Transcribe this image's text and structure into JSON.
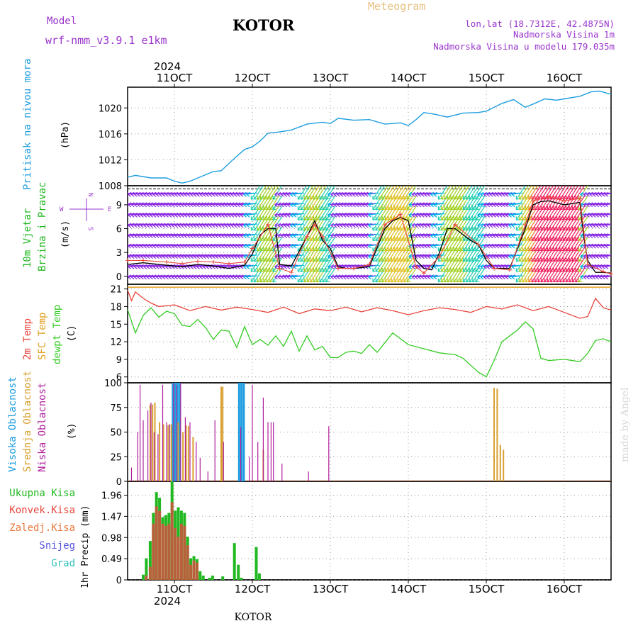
{
  "header": {
    "model_label": "Model",
    "model_name": "wrf-nmm_v3.9.1 e1km",
    "location": "KOTOR",
    "meteogram": "Meteogram",
    "lonlat": "lon,lat (18.7312E, 42.4875N)",
    "elevation": "Nadmorska Visina 1m",
    "model_elevation": "Nadmorska Visina u modelu 179.035m",
    "year": "2024",
    "footer_location": "KOTOR",
    "watermark": "made by Angel"
  },
  "colors": {
    "pressure": "#1e9ee0",
    "wind_title": "#22b822",
    "wind_label": "#9933cc",
    "temp2m": "#e8453c",
    "sfc": "#e0a020",
    "dew": "#33cc22",
    "cloud_high": "#1e9ee0",
    "cloud_mid": "#d9a030",
    "cloud_low": "#b0209c",
    "precip_total": "#22b822",
    "precip_conv": "#e8453c",
    "precip_frz": "#e8783c",
    "precip_snow": "#5555dd",
    "precip_hail": "#33c0c0"
  },
  "chart_data": [
    {
      "type": "line",
      "ylabel": "(hPa)",
      "side_labels": [
        "Pritisak na nivou mora"
      ],
      "x_ticks": [
        "11OCT",
        "12OCT",
        "13OCT",
        "14OCT",
        "15OCT",
        "16OCT"
      ],
      "x_tick_days": [
        11,
        12,
        13,
        14,
        15,
        16
      ],
      "xlim": [
        10.4,
        16.6
      ],
      "ylim": [
        1008,
        1023.2
      ],
      "y_ticks": [
        1008,
        1012,
        1016,
        1020
      ],
      "grid": true,
      "series": [
        {
          "x": [
            10.4,
            10.5,
            10.7,
            10.9,
            11.0,
            11.1,
            11.2,
            11.4,
            11.5,
            11.6,
            11.75,
            11.9,
            12.0,
            12.1,
            12.2,
            12.35,
            12.5,
            12.7,
            12.9,
            13.0,
            13.1,
            13.3,
            13.5,
            13.7,
            13.9,
            14.0,
            14.1,
            14.2,
            14.35,
            14.5,
            14.7,
            14.9,
            15.0,
            15.2,
            15.35,
            15.5,
            15.6,
            15.75,
            15.9,
            16.0,
            16.2,
            16.35,
            16.45,
            16.6
          ],
          "y": [
            1009.3,
            1009.6,
            1009.2,
            1009.2,
            1008.7,
            1008.4,
            1008.7,
            1009.7,
            1010.2,
            1010.3,
            1012.0,
            1013.6,
            1014.0,
            1014.9,
            1016.1,
            1016.3,
            1016.6,
            1017.5,
            1017.8,
            1017.6,
            1018.4,
            1018.1,
            1018.2,
            1017.5,
            1017.7,
            1017.3,
            1018.2,
            1019.3,
            1019.0,
            1018.6,
            1019.2,
            1019.3,
            1019.5,
            1020.7,
            1021.3,
            1020.1,
            1020.6,
            1021.4,
            1021.2,
            1021.4,
            1021.8,
            1022.5,
            1022.6,
            1022.1
          ]
        }
      ]
    },
    {
      "type": "line",
      "ylabel": "(m/s)",
      "side_labels": [
        "10m Vjetar",
        "Brzina i Pravac"
      ],
      "compass": {
        "n": "N",
        "w": "W",
        "e": "E",
        "s": "S"
      },
      "xlim": [
        10.4,
        16.6
      ],
      "ylim": [
        -1,
        11.4
      ],
      "y_ticks": [
        0,
        3,
        6,
        9
      ],
      "grid": true,
      "series": [
        {
          "name": "speed",
          "x": [
            10.4,
            10.6,
            10.9,
            11.1,
            11.3,
            11.5,
            11.7,
            11.9,
            12.0,
            12.1,
            12.2,
            12.3,
            12.35,
            12.5,
            12.7,
            12.8,
            12.9,
            13.0,
            13.1,
            13.2,
            13.3,
            13.5,
            13.7,
            13.8,
            13.9,
            14.0,
            14.1,
            14.2,
            14.3,
            14.4,
            14.5,
            14.6,
            14.8,
            14.9,
            15.0,
            15.1,
            15.2,
            15.3,
            15.5,
            15.6,
            15.7,
            15.8,
            16.0,
            16.2,
            16.25,
            16.3,
            16.4,
            16.5,
            16.6
          ],
          "y": [
            1.5,
            1.7,
            1.4,
            1.2,
            1.5,
            1.3,
            1.0,
            1.4,
            2.8,
            5.2,
            6.0,
            6.0,
            1.5,
            1.3,
            5.0,
            7.0,
            4.5,
            3.5,
            1.2,
            1.0,
            1.0,
            1.2,
            6.0,
            7.0,
            7.4,
            7.0,
            2.0,
            1.0,
            0.8,
            3.0,
            6.0,
            6.0,
            4.5,
            4.0,
            2.0,
            1.0,
            1.0,
            1.0,
            6.0,
            9.0,
            9.4,
            9.5,
            9.0,
            9.3,
            5.0,
            2.0,
            0.5,
            0.5,
            0.4
          ]
        },
        {
          "name": "gust",
          "x": [
            10.4,
            10.6,
            10.9,
            11.1,
            11.3,
            11.5,
            11.7,
            11.9,
            12.0,
            12.2,
            12.35,
            12.5,
            12.7,
            12.8,
            12.9,
            13.1,
            13.3,
            13.5,
            13.7,
            13.9,
            14.1,
            14.2,
            14.4,
            14.6,
            14.9,
            15.1,
            15.3,
            15.5,
            15.6,
            15.8,
            16.0,
            16.2,
            16.3,
            16.5,
            16.6
          ],
          "y": [
            2.0,
            2.0,
            1.8,
            1.6,
            1.9,
            1.8,
            1.6,
            1.8,
            3.5,
            6.5,
            1.0,
            0.5,
            5.0,
            6.5,
            5.0,
            1.0,
            1.0,
            1.5,
            6.5,
            7.8,
            1.2,
            0.4,
            2.5,
            6.5,
            4.0,
            1.0,
            0.8,
            6.5,
            9.5,
            10.0,
            9.5,
            9.8,
            1.5,
            0.6,
            0.3
          ]
        }
      ]
    },
    {
      "type": "line",
      "ylabel": "(C)",
      "side_labels": [
        "2m Temp",
        "SFC Temp",
        "dewpt Temp"
      ],
      "xlim": [
        10.4,
        16.6
      ],
      "ylim": [
        5,
        21.8
      ],
      "y_ticks": [
        6,
        9,
        12,
        15,
        18,
        21
      ],
      "grid": true,
      "series": [
        {
          "name": "2m",
          "x": [
            10.4,
            10.45,
            10.5,
            10.6,
            10.7,
            10.8,
            11.0,
            11.2,
            11.4,
            11.6,
            11.8,
            12.0,
            12.2,
            12.4,
            12.6,
            12.8,
            13.0,
            13.2,
            13.4,
            13.6,
            13.8,
            14.0,
            14.2,
            14.4,
            14.6,
            14.8,
            15.0,
            15.2,
            15.4,
            15.6,
            15.8,
            16.0,
            16.2,
            16.3,
            16.4,
            16.5,
            16.6
          ],
          "y": [
            20.8,
            19.0,
            20.5,
            19.4,
            18.6,
            18.0,
            18.3,
            17.3,
            18.0,
            17.4,
            17.9,
            17.5,
            17.0,
            17.9,
            16.8,
            17.6,
            17.3,
            17.9,
            17.1,
            17.8,
            17.3,
            16.6,
            17.3,
            17.8,
            17.5,
            17.0,
            18.0,
            17.6,
            18.3,
            17.3,
            18.0,
            17.0,
            16.0,
            16.3,
            19.4,
            17.8,
            17.4
          ]
        },
        {
          "name": "sfc",
          "x": [
            10.4,
            16.6
          ],
          "y": [
            21.3,
            21.3
          ]
        },
        {
          "name": "dewpt",
          "x": [
            10.4,
            10.5,
            10.6,
            10.7,
            10.8,
            10.9,
            11.0,
            11.1,
            11.2,
            11.3,
            11.4,
            11.5,
            11.6,
            11.7,
            11.8,
            11.9,
            12.0,
            12.1,
            12.2,
            12.3,
            12.4,
            12.5,
            12.6,
            12.7,
            12.8,
            12.9,
            13.0,
            13.1,
            13.2,
            13.3,
            13.4,
            13.5,
            13.6,
            13.8,
            14.0,
            14.2,
            14.4,
            14.6,
            14.7,
            14.8,
            14.9,
            15.0,
            15.1,
            15.2,
            15.3,
            15.4,
            15.5,
            15.6,
            15.7,
            15.8,
            16.0,
            16.2,
            16.3,
            16.4,
            16.5,
            16.6
          ],
          "y": [
            17.5,
            13.5,
            16.5,
            17.8,
            16.2,
            17.2,
            16.8,
            14.8,
            14.6,
            15.8,
            14.4,
            12.4,
            14.0,
            13.8,
            11.0,
            14.6,
            11.5,
            12.4,
            11.4,
            13.0,
            11.2,
            13.8,
            10.4,
            13.0,
            10.6,
            11.2,
            9.3,
            9.3,
            10.2,
            10.4,
            10.0,
            11.5,
            10.2,
            13.5,
            11.5,
            10.8,
            10.1,
            9.8,
            9.2,
            8.0,
            6.8,
            6.0,
            8.8,
            12.0,
            13.0,
            14.0,
            15.4,
            14.2,
            9.2,
            8.8,
            9.0,
            8.6,
            10.0,
            12.2,
            12.5,
            12.0
          ]
        }
      ]
    },
    {
      "type": "bar",
      "ylabel": "(%)",
      "side_labels": [
        "Visoka Oblacnost",
        "Srednja Oblacnost",
        "Niska Oblacnost"
      ],
      "xlim": [
        10.4,
        16.6
      ],
      "ylim": [
        0,
        100
      ],
      "y_ticks": [
        0,
        25,
        50,
        75,
        100
      ],
      "grid": true,
      "series": [
        {
          "name": "high",
          "x": [
            10.98,
            11.01,
            11.04,
            11.07,
            11.83,
            11.86,
            11.89
          ],
          "values": [
            100,
            100,
            100,
            100,
            100,
            100,
            100
          ]
        },
        {
          "name": "mid",
          "x": [
            10.69,
            10.72,
            10.75,
            10.81,
            10.86,
            10.92,
            10.96,
            11.05,
            11.11,
            11.15,
            11.18,
            11.24,
            11.6,
            11.62,
            12.14,
            15.1,
            15.14,
            15.18,
            15.22
          ],
          "values": [
            78,
            78,
            80,
            60,
            58,
            57,
            58,
            60,
            50,
            57,
            56,
            45,
            96,
            96,
            32,
            95,
            94,
            37,
            32
          ]
        },
        {
          "name": "low",
          "x": [
            10.45,
            10.53,
            10.56,
            10.6,
            10.66,
            10.7,
            10.74,
            10.79,
            10.85,
            10.9,
            10.94,
            10.99,
            11.03,
            11.08,
            11.14,
            11.2,
            11.28,
            11.33,
            11.43,
            11.52,
            11.63,
            11.85,
            11.96,
            12.0,
            12.07,
            12.14,
            12.2,
            12.24,
            12.27,
            12.38,
            12.72,
            12.98
          ],
          "values": [
            14,
            50,
            98,
            62,
            72,
            80,
            50,
            48,
            98,
            60,
            58,
            100,
            98,
            100,
            65,
            60,
            40,
            24,
            10,
            62,
            40,
            55,
            25,
            98,
            40,
            85,
            60,
            60,
            60,
            18,
            10,
            56
          ]
        }
      ]
    },
    {
      "type": "bar",
      "ylabel": "1hr Precip (mm)",
      "side_labels": [
        "Ukupna Kisa",
        "Konvek.Kisa",
        "Zaledj.Kisa",
        "Snijeg",
        "Grad"
      ],
      "xlim": [
        10.4,
        16.6
      ],
      "ylim": [
        0,
        2.28
      ],
      "y_ticks": [
        0,
        0.49,
        0.98,
        1.47,
        1.96
      ],
      "y_tick_labels": [
        "0",
        "0.49",
        "0.98",
        "1.47",
        "1.96"
      ],
      "grid": true,
      "series": [
        {
          "name": "total",
          "x": [
            10.6,
            10.64,
            10.69,
            10.73,
            10.77,
            10.81,
            10.85,
            10.89,
            10.93,
            10.97,
            11.01,
            11.05,
            11.09,
            11.13,
            11.17,
            11.21,
            11.25,
            11.29,
            11.33,
            11.37,
            11.45,
            11.49,
            11.62,
            11.77,
            11.82,
            11.86,
            12.05,
            12.09
          ],
          "values": [
            0.12,
            0.5,
            0.9,
            1.55,
            2.03,
            1.9,
            1.45,
            1.5,
            1.55,
            2.28,
            1.6,
            1.68,
            1.6,
            1.55,
            1.0,
            0.5,
            0.55,
            0.48,
            0.2,
            0.1,
            0.05,
            0.1,
            0.08,
            0.85,
            0.35,
            0.05,
            0.76,
            0.15
          ]
        },
        {
          "name": "conv",
          "x": [
            10.64,
            10.69,
            10.73,
            10.77,
            10.81,
            10.85,
            10.89,
            10.93,
            10.97,
            11.01,
            11.05,
            11.09,
            11.13,
            11.17,
            11.21,
            11.25,
            11.29
          ],
          "values": [
            0.1,
            0.3,
            1.3,
            1.7,
            1.6,
            1.3,
            1.25,
            1.3,
            1.8,
            1.2,
            1.0,
            1.3,
            1.25,
            0.8,
            0.35,
            0.45,
            0.4
          ]
        }
      ]
    }
  ]
}
